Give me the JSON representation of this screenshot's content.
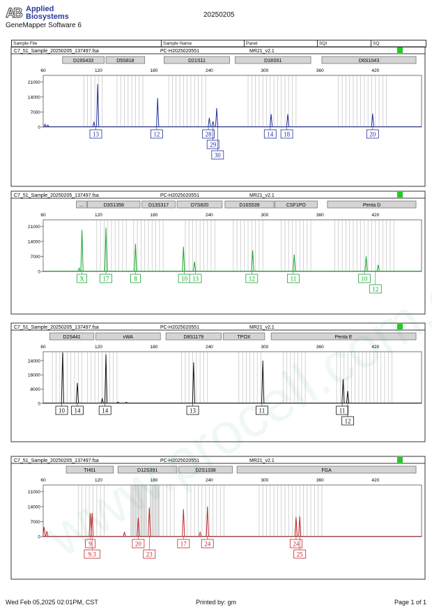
{
  "header": {
    "brand_line1": "Applied",
    "brand_line2": "Biosystems",
    "software": "GeneMapper Software 6",
    "run_date": "20250205",
    "columns": [
      "Sample File",
      "Sample Name",
      "Panel",
      "SQI",
      "SQ"
    ]
  },
  "footer": {
    "timestamp": "Wed Feb 05,2025 02:01PM, CST",
    "printed_by": "Printed by: gm",
    "page": "Page 1 of 1"
  },
  "watermark": "www.procell.com.cn",
  "colors": {
    "blue": "#1f2f9c",
    "green": "#17a32e",
    "black": "#111111",
    "red": "#c0262a",
    "status_ok": "#22cc22",
    "marker_fill": "#d4d4d4",
    "bin_line": "#c8c8c8"
  },
  "chart_data": [
    {
      "type": "line",
      "dye": "blue",
      "sample_file": "C7_51_Sample_20250205_137497.fsa",
      "sample_name": "PC-H2025020551",
      "panel": "MR21_v2.1",
      "x_ticks": [
        60,
        120,
        180,
        240,
        300,
        360,
        420
      ],
      "y_ticks": [
        0,
        7000,
        14000,
        21000
      ],
      "xlim": [
        60,
        470
      ],
      "ylim": [
        0,
        24000
      ],
      "markers": [
        {
          "label": "D19S433",
          "start": 81,
          "end": 126
        },
        {
          "label": "D5S818",
          "start": 128,
          "end": 170
        },
        {
          "label": "D21S11",
          "start": 191,
          "end": 262
        },
        {
          "label": "D18S51",
          "start": 268,
          "end": 350
        },
        {
          "label": "D6S1043",
          "start": 362,
          "end": 464
        }
      ],
      "bins": [
        [
          104,
          127
        ],
        [
          140,
          168
        ],
        [
          196,
          238
        ],
        [
          282,
          334
        ],
        [
          380,
          432
        ]
      ],
      "peaks": [
        {
          "x": 119,
          "h": 20000
        },
        {
          "x": 115,
          "h": 2200
        },
        {
          "x": 184,
          "h": 13500
        },
        {
          "x": 240,
          "h": 4300
        },
        {
          "x": 244,
          "h": 2600
        },
        {
          "x": 248,
          "h": 8800
        },
        {
          "x": 307,
          "h": 6000
        },
        {
          "x": 325,
          "h": 6000
        },
        {
          "x": 417,
          "h": 6200
        },
        {
          "x": 62,
          "h": 1300
        },
        {
          "x": 65,
          "h": 900
        }
      ],
      "alleles": [
        {
          "label": "13",
          "x": 117,
          "row": 0
        },
        {
          "label": "12",
          "x": 183,
          "row": 0
        },
        {
          "label": "28",
          "x": 239,
          "row": 0
        },
        {
          "label": "29",
          "x": 244,
          "row": 1
        },
        {
          "label": "30",
          "x": 249,
          "row": 2
        },
        {
          "label": "14",
          "x": 306,
          "row": 0
        },
        {
          "label": "18",
          "x": 324,
          "row": 0
        },
        {
          "label": "20",
          "x": 417,
          "row": 0
        }
      ]
    },
    {
      "type": "line",
      "dye": "green",
      "sample_file": "C7_51_Sample_20250205_137497.fsa",
      "sample_name": "PC-H2025020551",
      "panel": "MR21_v2.1",
      "x_ticks": [
        60,
        120,
        180,
        240,
        300,
        360,
        420
      ],
      "y_ticks": [
        0,
        7000,
        14000,
        21000
      ],
      "xlim": [
        60,
        470
      ],
      "ylim": [
        0,
        24000
      ],
      "markers": [
        {
          "label": "...",
          "start": 96,
          "end": 107
        },
        {
          "label": "D3S1358",
          "start": 108,
          "end": 165
        },
        {
          "label": "D13S317",
          "start": 167,
          "end": 203
        },
        {
          "label": "D7S820",
          "start": 205,
          "end": 254
        },
        {
          "label": "D16S539",
          "start": 257,
          "end": 310
        },
        {
          "label": "CSF1PO",
          "start": 311,
          "end": 357
        },
        {
          "label": "Penta D",
          "start": 368,
          "end": 464
        }
      ],
      "bins": [
        [
          118,
          150
        ],
        [
          158,
          192
        ],
        [
          214,
          248
        ],
        [
          266,
          300
        ],
        [
          318,
          352
        ],
        [
          376,
          440
        ]
      ],
      "peaks": [
        {
          "x": 99,
          "h": 1500
        },
        {
          "x": 102,
          "h": 19300
        },
        {
          "x": 128,
          "h": 20300
        },
        {
          "x": 160,
          "h": 12800
        },
        {
          "x": 212,
          "h": 11500
        },
        {
          "x": 224,
          "h": 4600
        },
        {
          "x": 287,
          "h": 9800
        },
        {
          "x": 332,
          "h": 7900
        },
        {
          "x": 410,
          "h": 7100
        },
        {
          "x": 423,
          "h": 3100
        }
      ],
      "alleles": [
        {
          "label": "X",
          "x": 102,
          "row": 0
        },
        {
          "label": "17",
          "x": 128,
          "row": 0
        },
        {
          "label": "8",
          "x": 160,
          "row": 0
        },
        {
          "label": "10",
          "x": 213,
          "row": 0
        },
        {
          "label": "13",
          "x": 225,
          "row": 0
        },
        {
          "label": "12",
          "x": 286,
          "row": 0
        },
        {
          "label": "11",
          "x": 331,
          "row": 0
        },
        {
          "label": "10",
          "x": 408,
          "row": 0
        },
        {
          "label": "12",
          "x": 420,
          "row": 1
        }
      ]
    },
    {
      "type": "line",
      "dye": "black",
      "sample_file": "C7_51_Sample_20250205_137497.fsa",
      "sample_name": "PC-H2025020551",
      "panel": "MR21_v2.1",
      "x_ticks": [
        60,
        120,
        180,
        240,
        300,
        360,
        420
      ],
      "y_ticks": [
        0,
        8000,
        16000,
        24000
      ],
      "xlim": [
        60,
        470
      ],
      "ylim": [
        0,
        29000
      ],
      "markers": [
        {
          "label": "D2S441",
          "start": 67,
          "end": 115
        },
        {
          "label": "vWA",
          "start": 117,
          "end": 187
        },
        {
          "label": "D8S1179",
          "start": 193,
          "end": 253
        },
        {
          "label": "TPOX",
          "start": 255,
          "end": 300
        },
        {
          "label": "Penta E",
          "start": 307,
          "end": 464
        }
      ],
      "bins": [
        [
          70,
          104
        ],
        [
          108,
          140
        ],
        [
          210,
          240
        ],
        [
          272,
          298
        ],
        [
          320,
          344
        ],
        [
          378,
          440
        ]
      ],
      "peaks": [
        {
          "x": 81,
          "h": 28500
        },
        {
          "x": 97,
          "h": 11500
        },
        {
          "x": 128,
          "h": 27500
        },
        {
          "x": 223,
          "h": 23000
        },
        {
          "x": 298,
          "h": 24000
        },
        {
          "x": 385,
          "h": 13500
        },
        {
          "x": 390,
          "h": 7000
        },
        {
          "x": 124,
          "h": 2600
        },
        {
          "x": 141,
          "h": 700
        },
        {
          "x": 150,
          "h": 600
        }
      ],
      "alleles": [
        {
          "label": "10",
          "x": 80,
          "row": 0
        },
        {
          "label": "14",
          "x": 97,
          "row": 0
        },
        {
          "label": "14",
          "x": 127,
          "row": 0
        },
        {
          "label": "13",
          "x": 222,
          "row": 0
        },
        {
          "label": "11",
          "x": 297,
          "row": 0
        },
        {
          "label": "11",
          "x": 384,
          "row": 0
        },
        {
          "label": "12",
          "x": 390,
          "row": 1
        }
      ]
    },
    {
      "type": "line",
      "dye": "red",
      "sample_file": "C7_51_Sample_20250205_137497.fsa",
      "sample_name": "PC-H2025020551",
      "panel": "MR21_v2.1",
      "x_ticks": [
        60,
        120,
        180,
        240,
        300,
        360,
        420
      ],
      "y_ticks": [
        0,
        7000,
        14000,
        21000
      ],
      "xlim": [
        60,
        470
      ],
      "ylim": [
        0,
        24000
      ],
      "markers": [
        {
          "label": "TH01",
          "start": 85,
          "end": 136
        },
        {
          "label": "D12S391",
          "start": 141,
          "end": 205
        },
        {
          "label": "D2S1338",
          "start": 207,
          "end": 265
        },
        {
          "label": "FGA",
          "start": 270,
          "end": 464
        }
      ],
      "bins": [
        [
          98,
          128
        ],
        [
          155,
          172
        ],
        [
          186,
          202
        ],
        [
          216,
          258
        ],
        [
          294,
          364
        ]
      ],
      "dense_bins": [
        [
          155,
          172
        ],
        [
          176,
          186
        ]
      ],
      "peaks": [
        {
          "x": 61,
          "h": 4500
        },
        {
          "x": 64,
          "h": 2500
        },
        {
          "x": 111,
          "h": 10800
        },
        {
          "x": 113,
          "h": 11000
        },
        {
          "x": 148,
          "h": 2000
        },
        {
          "x": 163,
          "h": 8800
        },
        {
          "x": 175,
          "h": 13500
        },
        {
          "x": 212,
          "h": 12800
        },
        {
          "x": 230,
          "h": 2000
        },
        {
          "x": 238,
          "h": 14000
        },
        {
          "x": 334,
          "h": 9200
        },
        {
          "x": 338,
          "h": 9500
        }
      ],
      "alleles": [
        {
          "label": "9",
          "x": 111,
          "row": 0
        },
        {
          "label": "9.3",
          "x": 113,
          "row": 1
        },
        {
          "label": "20",
          "x": 163,
          "row": 0
        },
        {
          "label": "23",
          "x": 175,
          "row": 1
        },
        {
          "label": "17",
          "x": 212,
          "row": 0
        },
        {
          "label": "24",
          "x": 238,
          "row": 0
        },
        {
          "label": "24",
          "x": 334,
          "row": 0
        },
        {
          "label": "25",
          "x": 338,
          "row": 1
        }
      ]
    }
  ]
}
